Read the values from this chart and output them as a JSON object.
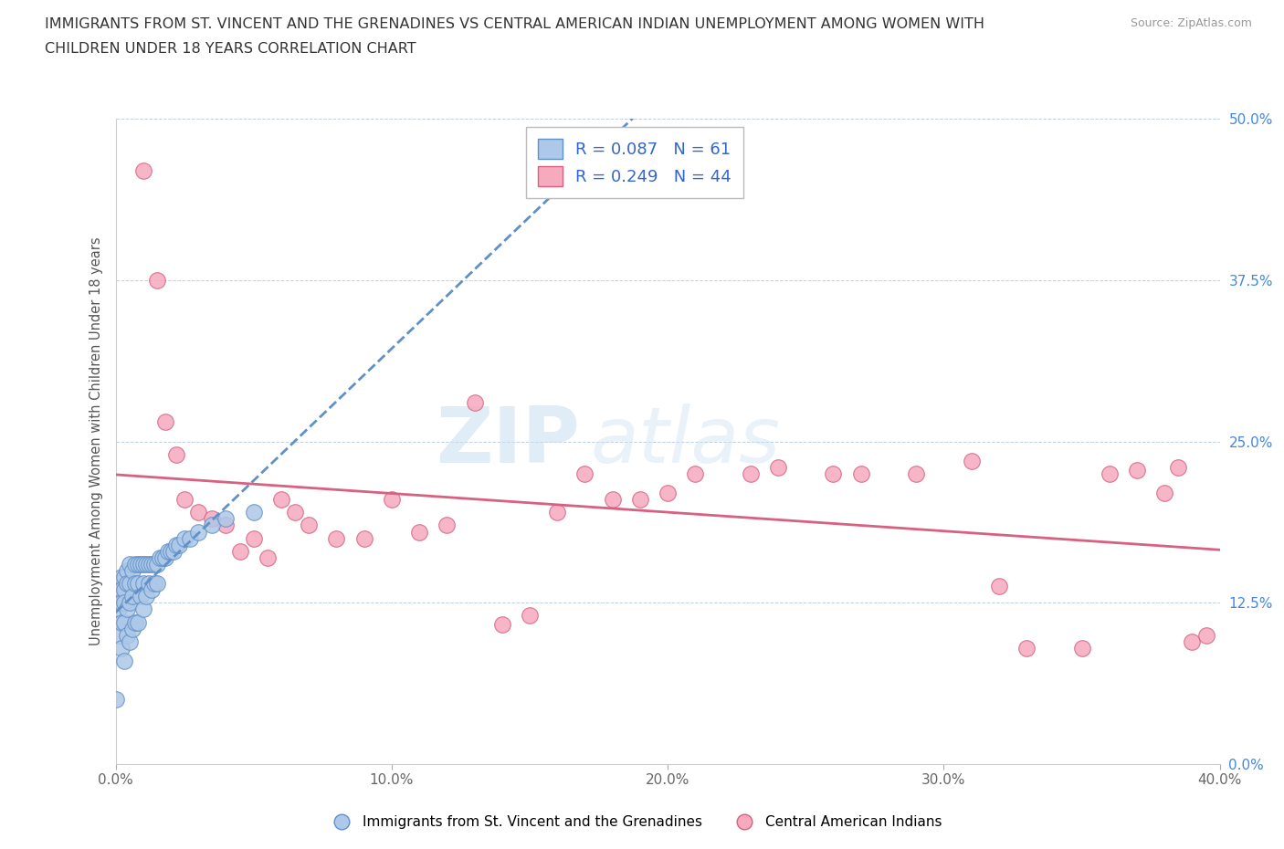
{
  "title_line1": "IMMIGRANTS FROM ST. VINCENT AND THE GRENADINES VS CENTRAL AMERICAN INDIAN UNEMPLOYMENT AMONG WOMEN WITH",
  "title_line2": "CHILDREN UNDER 18 YEARS CORRELATION CHART",
  "source": "Source: ZipAtlas.com",
  "ylabel": "Unemployment Among Women with Children Under 18 years",
  "xlim": [
    0.0,
    0.4
  ],
  "ylim": [
    0.0,
    0.5
  ],
  "xticks": [
    0.0,
    0.1,
    0.2,
    0.3,
    0.4
  ],
  "xticklabels": [
    "0.0%",
    "10.0%",
    "20.0%",
    "30.0%",
    "40.0%"
  ],
  "yticks": [
    0.0,
    0.125,
    0.25,
    0.375,
    0.5
  ],
  "yticklabels": [
    "0.0%",
    "12.5%",
    "25.0%",
    "37.5%",
    "50.0%"
  ],
  "blue_R": 0.087,
  "blue_N": 61,
  "pink_R": 0.249,
  "pink_N": 44,
  "blue_color": "#adc8e8",
  "pink_color": "#f5aabe",
  "blue_edge": "#6090c8",
  "pink_edge": "#d86080",
  "blue_line_color": "#6090c8",
  "pink_line_color": "#d86080",
  "legend_label_blue": "Immigrants from St. Vincent and the Grenadines",
  "legend_label_pink": "Central American Indians",
  "watermark_zip": "ZIP",
  "watermark_atlas": "atlas",
  "blue_x": [
    0.0,
    0.001,
    0.001,
    0.001,
    0.001,
    0.002,
    0.002,
    0.002,
    0.002,
    0.002,
    0.003,
    0.003,
    0.003,
    0.003,
    0.003,
    0.004,
    0.004,
    0.004,
    0.004,
    0.005,
    0.005,
    0.005,
    0.005,
    0.006,
    0.006,
    0.006,
    0.007,
    0.007,
    0.007,
    0.008,
    0.008,
    0.008,
    0.009,
    0.009,
    0.01,
    0.01,
    0.01,
    0.011,
    0.011,
    0.012,
    0.012,
    0.013,
    0.013,
    0.014,
    0.014,
    0.015,
    0.015,
    0.016,
    0.017,
    0.018,
    0.019,
    0.02,
    0.021,
    0.022,
    0.023,
    0.025,
    0.027,
    0.03,
    0.035,
    0.04,
    0.05
  ],
  "blue_y": [
    0.05,
    0.14,
    0.13,
    0.12,
    0.1,
    0.145,
    0.135,
    0.125,
    0.11,
    0.09,
    0.145,
    0.135,
    0.125,
    0.11,
    0.08,
    0.15,
    0.14,
    0.12,
    0.1,
    0.155,
    0.14,
    0.125,
    0.095,
    0.15,
    0.13,
    0.105,
    0.155,
    0.14,
    0.11,
    0.155,
    0.14,
    0.11,
    0.155,
    0.13,
    0.155,
    0.14,
    0.12,
    0.155,
    0.13,
    0.155,
    0.14,
    0.155,
    0.135,
    0.155,
    0.14,
    0.155,
    0.14,
    0.16,
    0.16,
    0.16,
    0.165,
    0.165,
    0.165,
    0.17,
    0.17,
    0.175,
    0.175,
    0.18,
    0.185,
    0.19,
    0.195
  ],
  "pink_x": [
    0.003,
    0.01,
    0.015,
    0.018,
    0.022,
    0.025,
    0.03,
    0.035,
    0.04,
    0.045,
    0.05,
    0.055,
    0.06,
    0.065,
    0.07,
    0.08,
    0.09,
    0.1,
    0.11,
    0.12,
    0.13,
    0.14,
    0.15,
    0.16,
    0.17,
    0.18,
    0.19,
    0.2,
    0.21,
    0.23,
    0.24,
    0.26,
    0.27,
    0.29,
    0.31,
    0.32,
    0.33,
    0.35,
    0.36,
    0.37,
    0.38,
    0.385,
    0.39,
    0.395
  ],
  "pink_y": [
    0.125,
    0.46,
    0.375,
    0.265,
    0.24,
    0.205,
    0.195,
    0.19,
    0.185,
    0.165,
    0.175,
    0.16,
    0.205,
    0.195,
    0.185,
    0.175,
    0.175,
    0.205,
    0.18,
    0.185,
    0.28,
    0.108,
    0.115,
    0.195,
    0.225,
    0.205,
    0.205,
    0.21,
    0.225,
    0.225,
    0.23,
    0.225,
    0.225,
    0.225,
    0.235,
    0.138,
    0.09,
    0.09,
    0.225,
    0.228,
    0.21,
    0.23,
    0.095,
    0.1
  ]
}
